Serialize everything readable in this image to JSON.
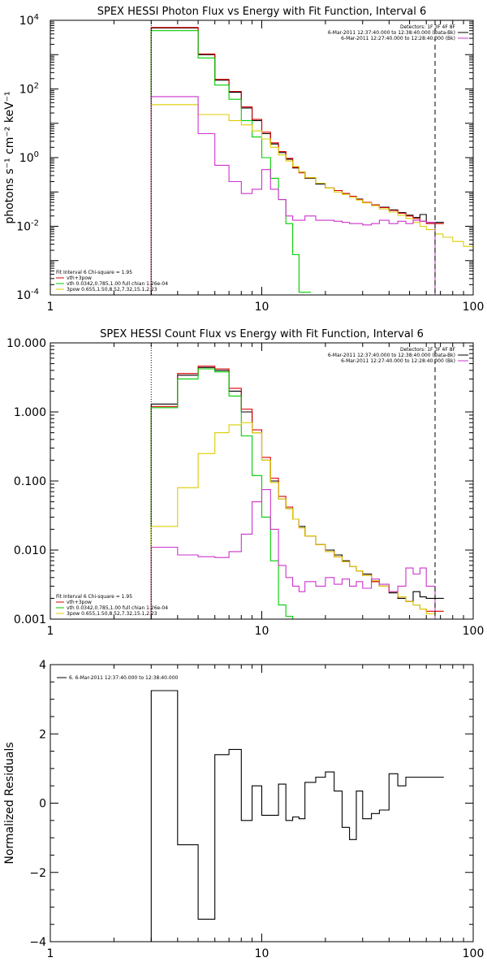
{
  "chart_data": [
    {
      "type": "line",
      "title": "SPEX HESSI Photon Flux vs Energy with Fit Function, Interval 6",
      "xlabel": "",
      "ylabel": "photons s⁻¹ cm⁻² keV⁻¹",
      "xscale": "log",
      "yscale": "log",
      "xlim": [
        1,
        100
      ],
      "ylim": [
        0.0001,
        10000
      ],
      "xticks": [
        "1",
        "10",
        "100"
      ],
      "yticks": [
        {
          "v": 0.0001,
          "b": "10",
          "e": "-4"
        },
        {
          "v": 0.01,
          "b": "10",
          "e": "-2"
        },
        {
          "v": 1,
          "b": "10",
          "e": "0"
        },
        {
          "v": 100,
          "b": "10",
          "e": "2"
        },
        {
          "v": 10000,
          "b": "10",
          "e": "4"
        }
      ],
      "legend_top": [
        "Detectors: 1F 3F 4F 8F",
        "6-Mar-2011 12:37:40.000 to 12:38:40.000 (Data-Bk)",
        "6-Mar-2011 12:27:40.000 to 12:28:40.000 (Bk)"
      ],
      "legend_top_colors": [
        "",
        "#000000",
        "#cc33cc"
      ],
      "legend_bottom": [
        "Fit Interval 6   Chi-square = 1.95",
        "vth+3pow",
        "vth 0.0342,0.785,1.00  full chian 1.26e-04",
        "3pow 0.655,1.50,8.52,7.32,15.1,2.23"
      ],
      "legend_bottom_colors": [
        "",
        "#dd0000",
        "#00cc00",
        "#ddcc00"
      ],
      "vlines": [
        {
          "x": 3.0,
          "style": "dotted"
        },
        {
          "x": 66,
          "style": "dashed"
        }
      ],
      "series": [
        {
          "name": "Data-Bk",
          "color": "#000000",
          "step": true,
          "x": [
            3,
            4,
            5,
            6,
            7,
            8,
            9,
            10,
            11,
            12,
            13,
            14,
            15,
            16,
            18,
            20,
            22,
            24,
            26,
            28,
            30,
            33,
            36,
            40,
            44,
            48,
            52,
            56,
            60,
            66
          ],
          "y": [
            6000,
            6000,
            1000,
            180,
            80,
            28,
            12,
            5,
            2.5,
            1.4,
            0.9,
            0.5,
            0.38,
            0.25,
            0.17,
            0.13,
            0.11,
            0.09,
            0.075,
            0.062,
            0.05,
            0.042,
            0.036,
            0.03,
            0.025,
            0.021,
            0.018,
            0.022,
            0.013,
            0.013
          ]
        },
        {
          "name": "vth+3pow",
          "color": "#dd0000",
          "step": true,
          "x": [
            3,
            4,
            5,
            6,
            7,
            8,
            9,
            10,
            11,
            12,
            13,
            14,
            15,
            16,
            18,
            20,
            22,
            24,
            26,
            28,
            30,
            33,
            36,
            40,
            44,
            48,
            52,
            56,
            60,
            66
          ],
          "y": [
            6200,
            6200,
            1050,
            190,
            85,
            30,
            13,
            5.5,
            2.7,
            1.5,
            0.95,
            0.52,
            0.36,
            0.26,
            0.18,
            0.13,
            0.11,
            0.09,
            0.075,
            0.06,
            0.05,
            0.042,
            0.035,
            0.029,
            0.024,
            0.02,
            0.017,
            0.014,
            0.012,
            0.012
          ]
        },
        {
          "name": "vth",
          "color": "#00cc00",
          "step": true,
          "x": [
            3,
            4,
            5,
            6,
            7,
            8,
            9,
            10,
            11,
            12,
            13,
            14,
            15,
            16
          ],
          "y": [
            5000,
            5000,
            800,
            130,
            50,
            12,
            4,
            1,
            0.25,
            0.06,
            0.012,
            0.0015,
            0.00012,
            0.00012
          ]
        },
        {
          "name": "3pow",
          "color": "#ddcc00",
          "step": true,
          "x": [
            3,
            4,
            5,
            6,
            7,
            8,
            9,
            10,
            11,
            12,
            13,
            14,
            15,
            16,
            18,
            20,
            22,
            24,
            26,
            28,
            30,
            33,
            36,
            40,
            44,
            48,
            52,
            56,
            60,
            66,
            72,
            80,
            90,
            100
          ],
          "y": [
            35,
            35,
            18,
            18,
            12,
            9,
            6,
            3.5,
            2,
            1.2,
            0.8,
            0.55,
            0.38,
            0.26,
            0.18,
            0.13,
            0.1,
            0.085,
            0.07,
            0.058,
            0.048,
            0.04,
            0.032,
            0.026,
            0.021,
            0.017,
            0.013,
            0.01,
            0.008,
            0.006,
            0.0048,
            0.0036,
            0.0026,
            0.0018
          ]
        },
        {
          "name": "Bk",
          "color": "#cc33cc",
          "step": true,
          "x": [
            3,
            4,
            5,
            6,
            7,
            8,
            9,
            10,
            11,
            12,
            13,
            14,
            15,
            16,
            18,
            20,
            22,
            24,
            26,
            28,
            30,
            33,
            36,
            40,
            44,
            48,
            52,
            56,
            60,
            66
          ],
          "y": [
            60,
            60,
            5,
            0.6,
            0.2,
            0.09,
            0.12,
            0.45,
            0.12,
            0.06,
            0.02,
            0.015,
            0.015,
            0.02,
            0.015,
            0.015,
            0.014,
            0.013,
            0.012,
            0.012,
            0.011,
            0.012,
            0.015,
            0.012,
            0.014,
            0.012,
            0.015,
            0.014,
            0.013,
            0.0001
          ]
        }
      ]
    },
    {
      "type": "line",
      "title": "SPEX HESSI Count Flux vs Energy with Fit Function, Interval 6",
      "xlabel": "",
      "ylabel": "",
      "xscale": "log",
      "yscale": "log",
      "xlim": [
        1,
        100
      ],
      "ylim": [
        0.001,
        10
      ],
      "xticks": [
        "1",
        "10",
        "100"
      ],
      "yticks": [
        {
          "v": 0.001,
          "t": "0.001"
        },
        {
          "v": 0.01,
          "t": "0.010"
        },
        {
          "v": 0.1,
          "t": "0.100"
        },
        {
          "v": 1,
          "t": "1.000"
        },
        {
          "v": 10,
          "t": "10.000"
        }
      ],
      "legend_top": [
        "Detectors: 1F 3F 4F 8F",
        "6-Mar-2011 12:37:40.000 to 12:38:40.000 (Data-Bk)",
        "6-Mar-2011 12:27:40.000 to 12:28:40.000 (Bk)"
      ],
      "legend_top_colors": [
        "",
        "#000000",
        "#cc33cc"
      ],
      "legend_bottom": [
        "Fit Interval 6   Chi-square = 1.95",
        "vth+3pow",
        "vth 0.0342,0.785,1.00  full chian 1.26e-04",
        "3pow 0.655,1.50,8.52,7.32,15.1,2.23"
      ],
      "legend_bottom_colors": [
        "",
        "#dd0000",
        "#00cc00",
        "#ddcc00"
      ],
      "vlines": [
        {
          "x": 3.0,
          "style": "dotted"
        },
        {
          "x": 66,
          "style": "dashed"
        }
      ],
      "series": [
        {
          "name": "Data-Bk",
          "color": "#000000",
          "step": true,
          "x": [
            3,
            4,
            5,
            6,
            7,
            8,
            9,
            10,
            11,
            12,
            13,
            14,
            15,
            16,
            18,
            20,
            22,
            24,
            26,
            28,
            30,
            33,
            36,
            40,
            44,
            48,
            52,
            56,
            60,
            66
          ],
          "y": [
            1.3,
            3.4,
            4.4,
            4.0,
            2.0,
            1.0,
            0.5,
            0.2,
            0.1,
            0.055,
            0.04,
            0.028,
            0.022,
            0.016,
            0.012,
            0.01,
            0.0085,
            0.007,
            0.0058,
            0.005,
            0.0045,
            0.0035,
            0.003,
            0.0024,
            0.002,
            0.0018,
            0.0025,
            0.0021,
            0.002,
            0.002
          ]
        },
        {
          "name": "vth+3pow",
          "color": "#dd0000",
          "step": true,
          "x": [
            3,
            4,
            5,
            6,
            7,
            8,
            9,
            10,
            11,
            12,
            13,
            14,
            15,
            16,
            18,
            20,
            22,
            24,
            26,
            28,
            30,
            33,
            36,
            40,
            44,
            48,
            52,
            56,
            60,
            66
          ],
          "y": [
            1.2,
            3.6,
            4.6,
            4.2,
            2.2,
            1.1,
            0.55,
            0.22,
            0.11,
            0.06,
            0.042,
            0.028,
            0.021,
            0.016,
            0.012,
            0.0095,
            0.008,
            0.0068,
            0.0058,
            0.005,
            0.0043,
            0.0035,
            0.003,
            0.0025,
            0.0021,
            0.0018,
            0.0016,
            0.0014,
            0.0013,
            0.0013
          ]
        },
        {
          "name": "vth",
          "color": "#00cc00",
          "step": true,
          "x": [
            3,
            4,
            5,
            6,
            7,
            8,
            9,
            10,
            11,
            12,
            13,
            14,
            15
          ],
          "y": [
            1.15,
            3.0,
            4.2,
            3.8,
            1.7,
            0.45,
            0.12,
            0.03,
            0.007,
            0.0016,
            0.0011,
            0.001,
            0.001
          ]
        },
        {
          "name": "3pow",
          "color": "#ddcc00",
          "step": true,
          "x": [
            3,
            4,
            5,
            6,
            7,
            8,
            9,
            10,
            11,
            12,
            13,
            14,
            15,
            16,
            18,
            20,
            22,
            24,
            26,
            28,
            30,
            33,
            36,
            40,
            44,
            48,
            52,
            56,
            60,
            66
          ],
          "y": [
            0.022,
            0.08,
            0.25,
            0.5,
            0.65,
            0.7,
            0.5,
            0.2,
            0.095,
            0.055,
            0.04,
            0.028,
            0.021,
            0.016,
            0.012,
            0.0095,
            0.008,
            0.0068,
            0.0058,
            0.005,
            0.0043,
            0.0036,
            0.003,
            0.0025,
            0.0021,
            0.0018,
            0.0016,
            0.0014,
            0.0012,
            0.001
          ]
        },
        {
          "name": "Bk",
          "color": "#cc33cc",
          "step": true,
          "x": [
            3,
            4,
            5,
            6,
            7,
            8,
            9,
            10,
            11,
            12,
            13,
            14,
            15,
            16,
            18,
            20,
            22,
            24,
            26,
            28,
            30,
            33,
            36,
            40,
            44,
            48,
            52,
            56,
            60,
            66
          ],
          "y": [
            0.011,
            0.0085,
            0.008,
            0.0078,
            0.0095,
            0.017,
            0.05,
            0.075,
            0.02,
            0.006,
            0.004,
            0.003,
            0.0025,
            0.0035,
            0.003,
            0.004,
            0.0032,
            0.0038,
            0.003,
            0.0035,
            0.0028,
            0.0038,
            0.0032,
            0.0025,
            0.003,
            0.0055,
            0.0045,
            0.0055,
            0.003,
            0.001
          ]
        }
      ]
    },
    {
      "type": "line",
      "title": "",
      "xlabel": "",
      "ylabel": "Normalized Residuals",
      "xscale": "log",
      "yscale": "linear",
      "xlim": [
        1,
        100
      ],
      "ylim": [
        -4,
        4
      ],
      "xticks": [
        "1",
        "10",
        "100"
      ],
      "yticks": [
        {
          "v": -4,
          "t": "−4"
        },
        {
          "v": -2,
          "t": "−2"
        },
        {
          "v": 0,
          "t": "0"
        },
        {
          "v": 2,
          "t": "2"
        },
        {
          "v": 4,
          "t": "4"
        }
      ],
      "legend_top_left": "6. 6-Mar-2011 12:37:40.000 to 12:38:40.000",
      "series": [
        {
          "name": "residuals",
          "color": "#000000",
          "step": true,
          "x": [
            3,
            4,
            5,
            6,
            7,
            8,
            9,
            10,
            11,
            12,
            13,
            14,
            15,
            16,
            18,
            20,
            22,
            24,
            26,
            28,
            30,
            33,
            36,
            40,
            44,
            48,
            52,
            56,
            60,
            66
          ],
          "y": [
            3.25,
            -1.2,
            -3.35,
            1.4,
            1.55,
            -0.5,
            0.5,
            -0.35,
            -0.35,
            0.55,
            -0.5,
            -0.4,
            -0.45,
            0.6,
            0.75,
            0.9,
            0.35,
            -0.7,
            -1.05,
            0.35,
            -0.45,
            -0.3,
            -0.2,
            0.85,
            0.5,
            0.75,
            0.75,
            0.75,
            0.75,
            0.75
          ]
        }
      ]
    }
  ]
}
